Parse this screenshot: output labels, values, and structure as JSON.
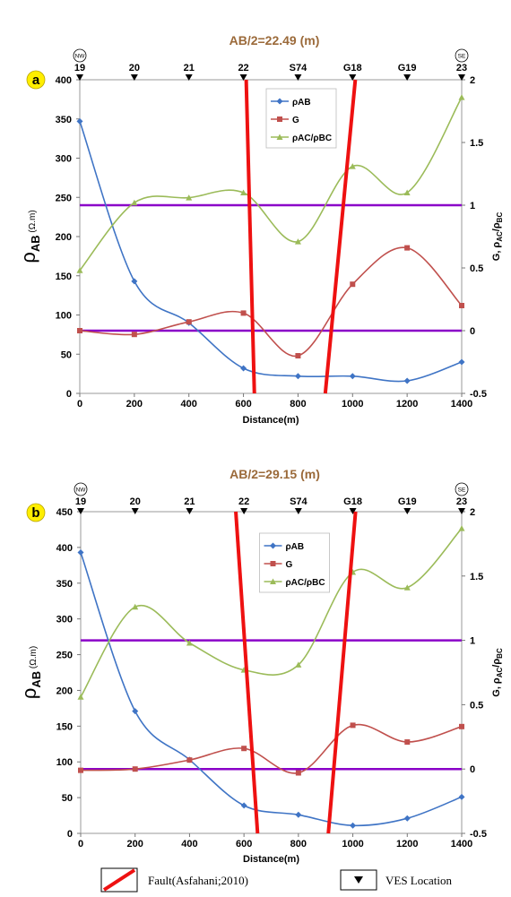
{
  "figure": {
    "fault_legend": "Fault(Asfahani;2010)",
    "ves_legend": "VES Location"
  },
  "colors": {
    "rhoAB": "#3f74c5",
    "G": "#c0504d",
    "ratio": "#9bbb59",
    "fault": "#ee1111",
    "reference": "#8a00c8",
    "title": "#9b6a3a",
    "badge": "#ffee00"
  },
  "chart_data": [
    {
      "type": "line",
      "panel": "a",
      "title": "AB/2=22.49 (m)",
      "xlabel": "Distance(m)",
      "ylabel_left": "ρAB (Ω.m)",
      "ylabel_right": "G, ρAC/ρBC",
      "xlim": [
        0,
        1400
      ],
      "ylim_left": [
        0,
        400
      ],
      "ylim_right": [
        -0.5,
        2
      ],
      "x_ticks": [
        0,
        200,
        400,
        600,
        800,
        1000,
        1200,
        1400
      ],
      "y_left_ticks": [
        0,
        50,
        100,
        150,
        200,
        250,
        300,
        350,
        400
      ],
      "y_right_ticks": [
        -0.5,
        0,
        0.5,
        1,
        1.5,
        2
      ],
      "ves_locations": [
        {
          "label": "19",
          "x": 0
        },
        {
          "label": "20",
          "x": 200
        },
        {
          "label": "21",
          "x": 400
        },
        {
          "label": "22",
          "x": 600
        },
        {
          "label": "S74",
          "x": 800
        },
        {
          "label": "G18",
          "x": 1000
        },
        {
          "label": "G19",
          "x": 1200
        },
        {
          "label": "23",
          "x": 1400
        }
      ],
      "direction_left": "NW",
      "direction_right": "SE",
      "x": [
        0,
        200,
        400,
        600,
        800,
        1000,
        1200,
        1400
      ],
      "series": [
        {
          "name": "ρAB",
          "axis": "left",
          "values": [
            347,
            143,
            90,
            32,
            22,
            22,
            16,
            40
          ]
        },
        {
          "name": "G",
          "axis": "right",
          "values": [
            0.0,
            -0.03,
            0.07,
            0.14,
            -0.2,
            0.37,
            0.66,
            0.2
          ]
        },
        {
          "name": "ρAC/ρBC",
          "axis": "right",
          "values": [
            0.48,
            1.02,
            1.06,
            1.1,
            0.71,
            1.31,
            1.1,
            1.86
          ]
        }
      ],
      "reference_lines_right": [
        1,
        0
      ],
      "faults": [
        {
          "x_top": 610,
          "x_bottom": 640
        },
        {
          "x_top": 1010,
          "x_bottom": 900
        }
      ],
      "legend_position": "top-center",
      "grid": false
    },
    {
      "type": "line",
      "panel": "b",
      "title": "AB/2=29.15 (m)",
      "xlabel": "Distance(m)",
      "ylabel_left": "ρAB (Ω.m)",
      "ylabel_right": "G, ρAC/ρBC",
      "xlim": [
        0,
        1400
      ],
      "ylim_left": [
        0,
        450
      ],
      "ylim_right": [
        -0.5,
        2
      ],
      "x_ticks": [
        0,
        200,
        400,
        600,
        800,
        1000,
        1200,
        1400
      ],
      "y_left_ticks": [
        0,
        50,
        100,
        150,
        200,
        250,
        300,
        350,
        400,
        450
      ],
      "y_right_ticks": [
        -0.5,
        0,
        0.5,
        1,
        1.5,
        2
      ],
      "ves_locations": [
        {
          "label": "19",
          "x": 0
        },
        {
          "label": "20",
          "x": 200
        },
        {
          "label": "21",
          "x": 400
        },
        {
          "label": "22",
          "x": 600
        },
        {
          "label": "S74",
          "x": 800
        },
        {
          "label": "G18",
          "x": 1000
        },
        {
          "label": "G19",
          "x": 1200
        },
        {
          "label": "23",
          "x": 1400
        }
      ],
      "direction_left": "NW",
      "direction_right": "SE",
      "x": [
        0,
        200,
        400,
        600,
        800,
        1000,
        1200,
        1400
      ],
      "series": [
        {
          "name": "ρAB",
          "axis": "left",
          "values": [
            393,
            171,
            103,
            39,
            26,
            11,
            21,
            51
          ]
        },
        {
          "name": "G",
          "axis": "right",
          "values": [
            -0.01,
            0.0,
            0.07,
            0.16,
            -0.03,
            0.34,
            0.21,
            0.33
          ]
        },
        {
          "name": "ρAC/ρBC",
          "axis": "right",
          "values": [
            0.56,
            1.26,
            0.98,
            0.77,
            0.81,
            1.53,
            1.41,
            1.87
          ]
        }
      ],
      "reference_lines_right": [
        1,
        0
      ],
      "faults": [
        {
          "x_top": 570,
          "x_bottom": 650
        },
        {
          "x_top": 1010,
          "x_bottom": 910
        }
      ],
      "legend_position": "top-center",
      "grid": false
    }
  ]
}
